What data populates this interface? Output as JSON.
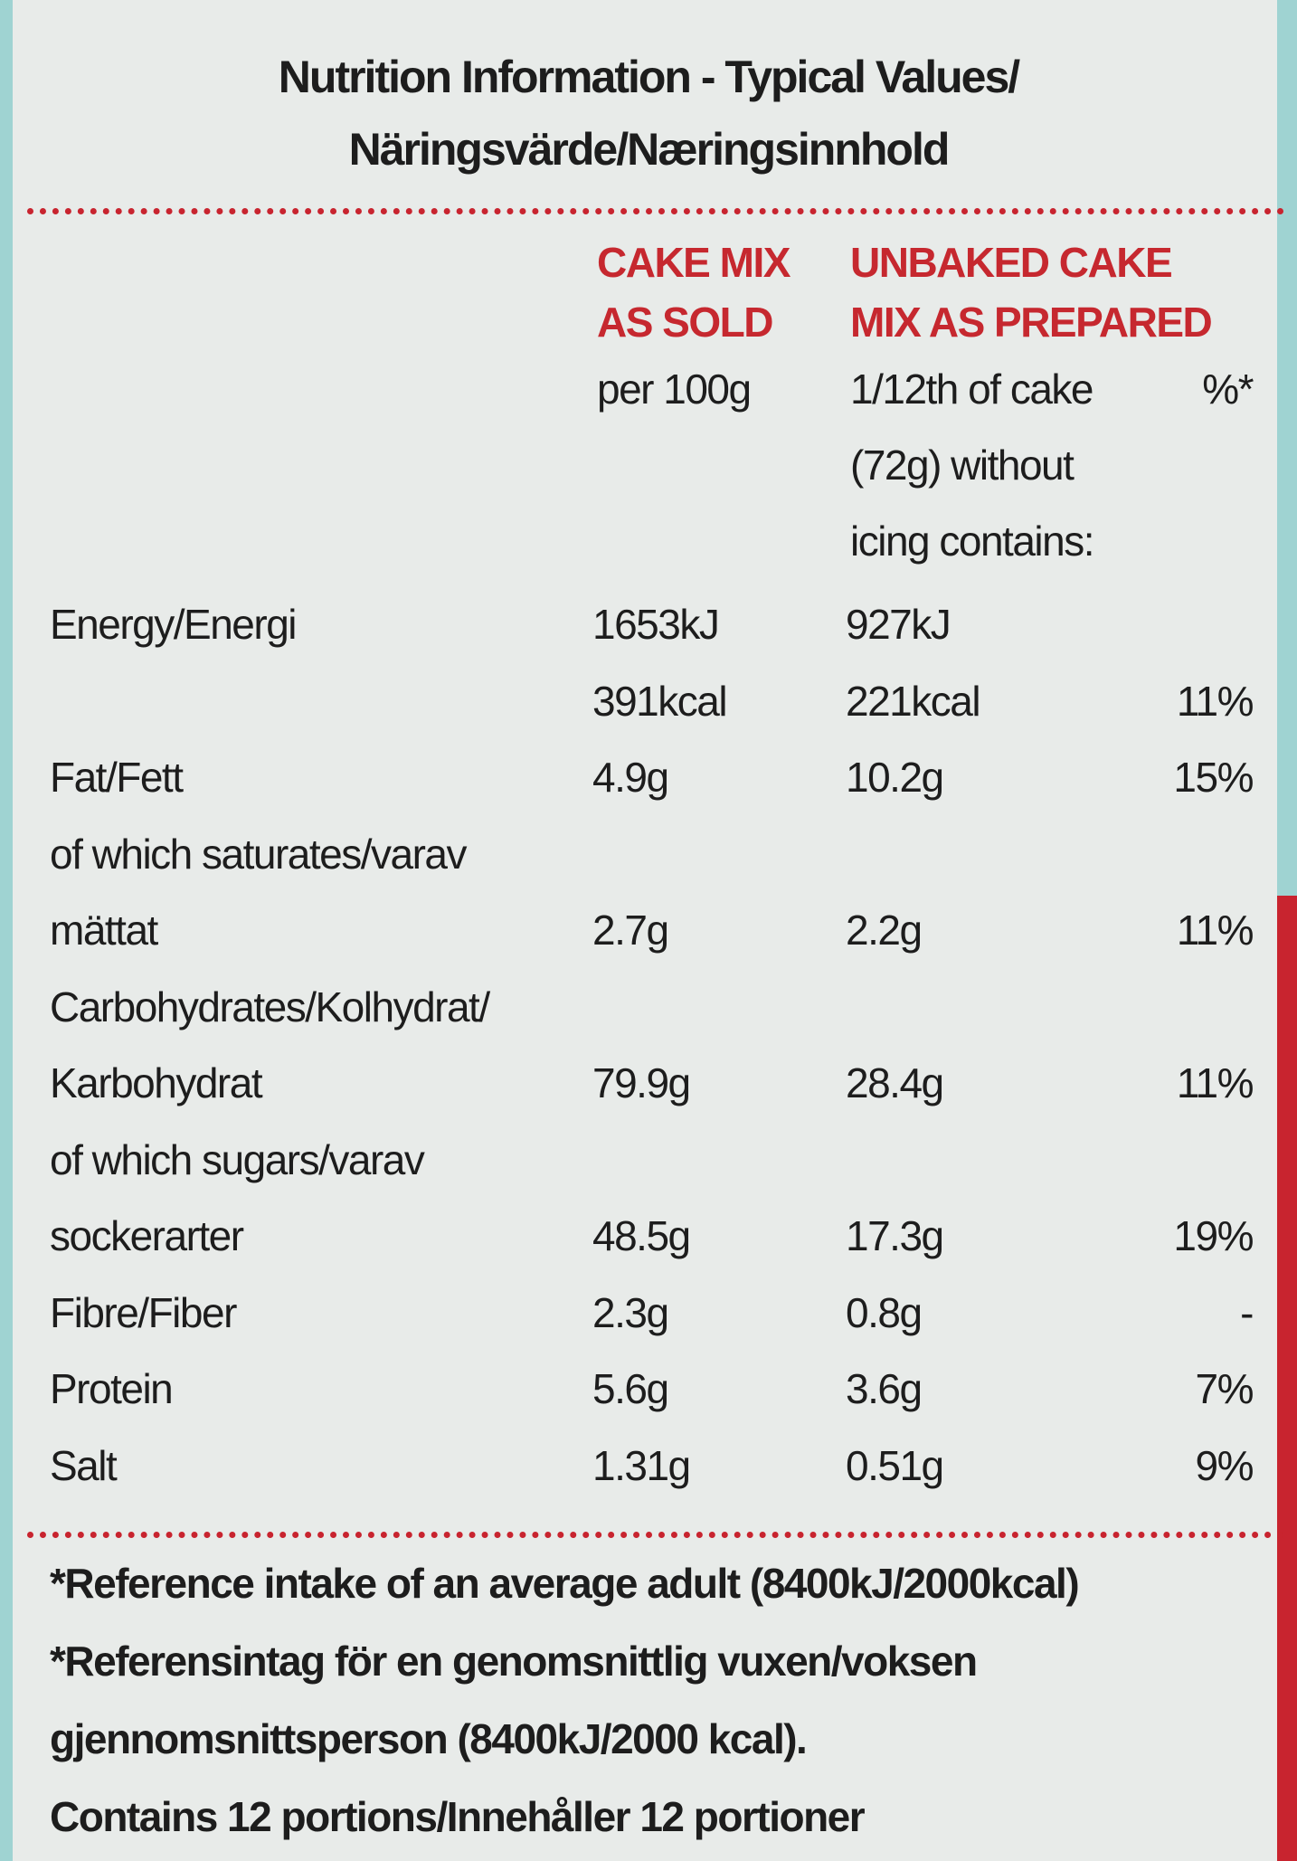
{
  "header": {
    "title_lines": [
      "Nutrition Information - Typical Values/",
      "Näringsvärde/Næringsinnhold"
    ]
  },
  "columns": [
    {
      "heading": [
        "CAKE MIX",
        "AS SOLD"
      ],
      "sub": [
        "per 100g"
      ]
    },
    {
      "heading": [
        "UNBAKED CAKE",
        "MIX AS PREPARED"
      ],
      "sub": [
        "1/12th of cake",
        "(72g) without",
        "icing contains:"
      ]
    },
    {
      "sub": [
        "%*"
      ]
    }
  ],
  "rows": [
    {
      "label": [
        "Energy/Energi"
      ],
      "as_sold": [
        "1653kJ",
        "391kcal"
      ],
      "prepared": [
        "927kJ",
        "221kcal"
      ],
      "ri": [
        "11%"
      ]
    },
    {
      "label": [
        "Fat/Fett"
      ],
      "as_sold": [
        "4.9g"
      ],
      "prepared": [
        "10.2g"
      ],
      "ri": [
        "15%"
      ]
    },
    {
      "label": [
        "of which saturates/varav",
        "mättat"
      ],
      "as_sold": [
        "2.7g"
      ],
      "prepared": [
        "2.2g"
      ],
      "ri": [
        "11%"
      ]
    },
    {
      "label": [
        "Carbohydrates/Kolhydrat/",
        "Karbohydrat"
      ],
      "as_sold": [
        "79.9g"
      ],
      "prepared": [
        "28.4g"
      ],
      "ri": [
        "11%"
      ]
    },
    {
      "label": [
        "of which sugars/varav",
        "sockerarter"
      ],
      "as_sold": [
        "48.5g"
      ],
      "prepared": [
        "17.3g"
      ],
      "ri": [
        "19%"
      ]
    },
    {
      "label": [
        "Fibre/Fiber"
      ],
      "as_sold": [
        "2.3g"
      ],
      "prepared": [
        "0.8g"
      ],
      "ri": [
        "-"
      ]
    },
    {
      "label": [
        "Protein"
      ],
      "as_sold": [
        "5.6g"
      ],
      "prepared": [
        "3.6g"
      ],
      "ri": [
        "7%"
      ]
    },
    {
      "label": [
        "Salt"
      ],
      "as_sold": [
        "1.31g"
      ],
      "prepared": [
        "0.51g"
      ],
      "ri": [
        "9%"
      ]
    }
  ],
  "footnotes": [
    "*Reference intake of an average adult (8400kJ/2000kcal)",
    "*Referensintag för en genomsnittlig vuxen/voksen",
    "gjennomsnittsperson (8400kJ/2000 kcal).",
    "Contains 12 portions/Innehåller 12 portioner"
  ]
}
